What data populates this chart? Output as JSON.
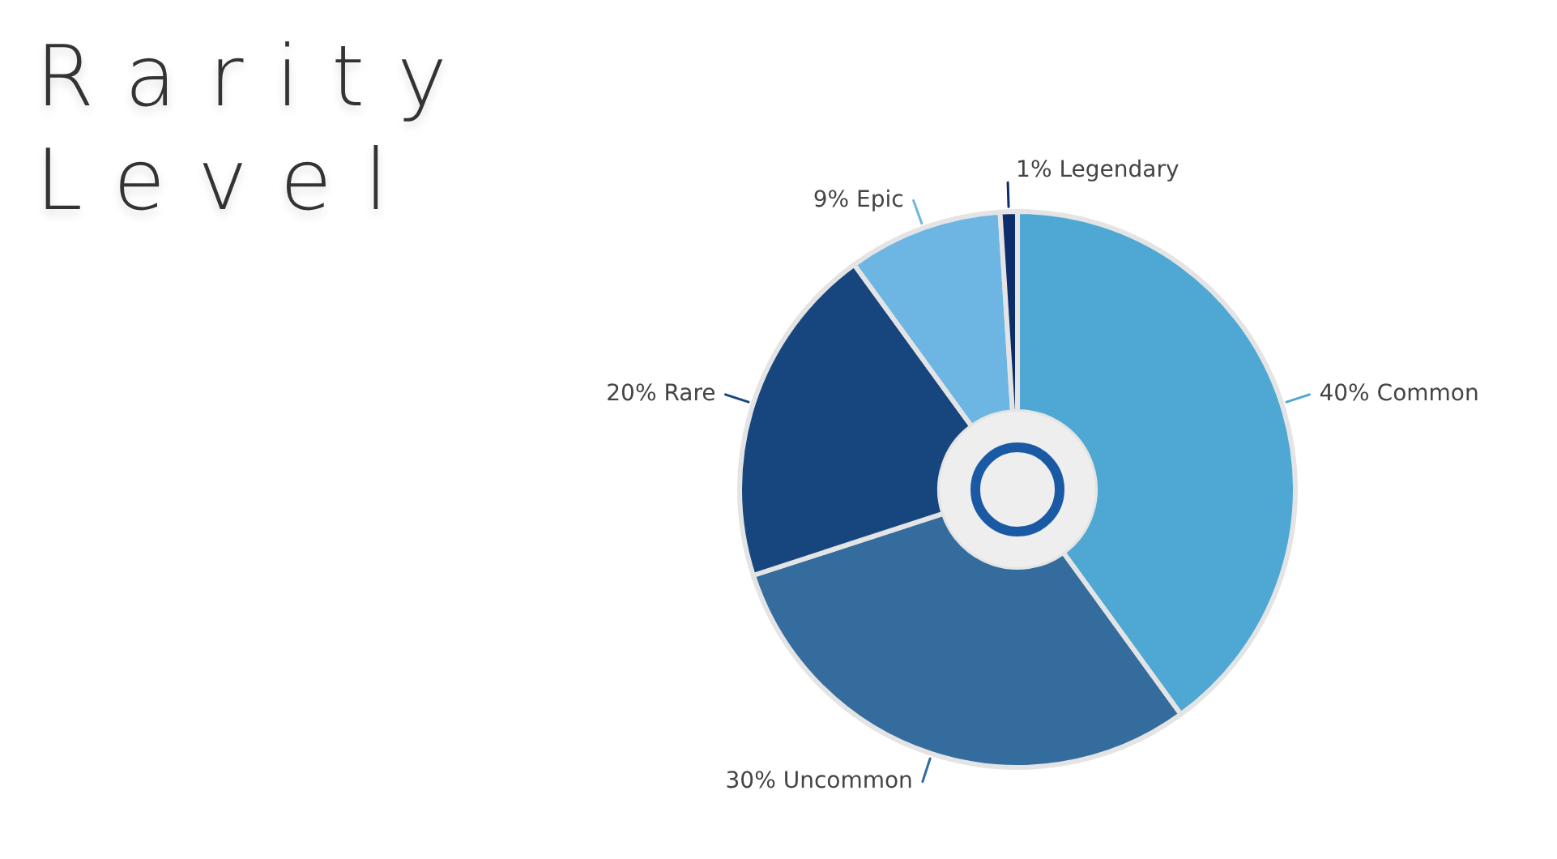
{
  "chart_data": {
    "type": "donut",
    "title": "Rarity Level",
    "categories": [
      "Common",
      "Uncommon",
      "Rare",
      "Epic",
      "Legendary"
    ],
    "values": [
      40,
      30,
      20,
      9,
      1
    ],
    "value_labels": [
      "40%",
      "30%",
      "20%",
      "9%",
      "1%"
    ],
    "colors": [
      "#4ea8d3",
      "#336c9d",
      "#17467f",
      "#6db6e3",
      "#0c2d6b"
    ]
  }
}
